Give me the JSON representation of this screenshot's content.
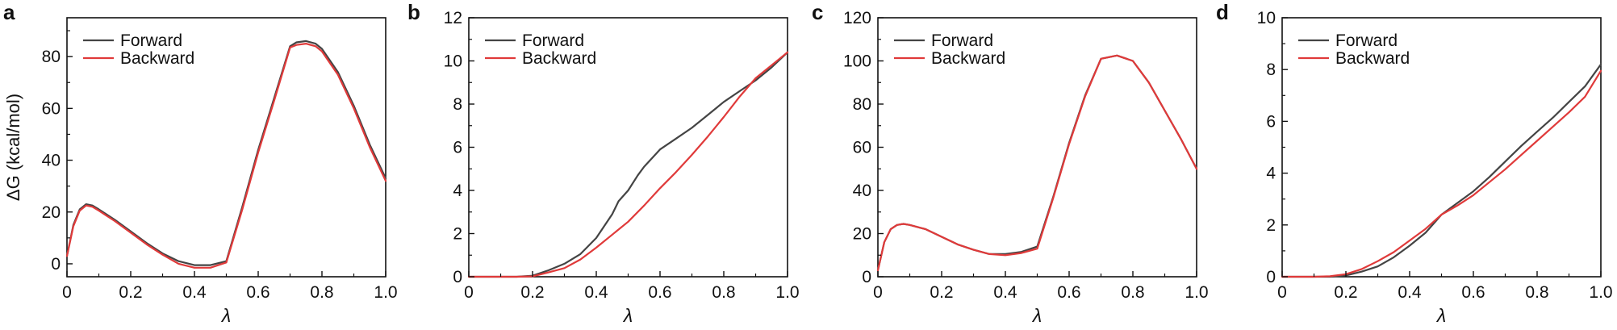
{
  "chart_data": [
    {
      "type": "line",
      "panel_label": "a",
      "xlabel": "λ",
      "ylabel": "ΔG (kcal/mol)",
      "xlim": [
        0,
        1
      ],
      "ylim": [
        -5,
        95
      ],
      "xticks": [
        0,
        0.2,
        0.4,
        0.6,
        0.8,
        1.0
      ],
      "xtick_labels": [
        "0",
        "0.2",
        "0.4",
        "0.6",
        "0.8",
        "1.0"
      ],
      "yticks": [
        0,
        20,
        40,
        60,
        80
      ],
      "ytick_labels": [
        "0",
        "20",
        "40",
        "60",
        "80"
      ],
      "legend": "top-left",
      "grid": false,
      "series": [
        {
          "name": "Forward",
          "color": "#444444",
          "x": [
            0,
            0.02,
            0.04,
            0.06,
            0.08,
            0.1,
            0.15,
            0.2,
            0.25,
            0.3,
            0.35,
            0.4,
            0.45,
            0.5,
            0.55,
            0.6,
            0.65,
            0.7,
            0.72,
            0.75,
            0.78,
            0.8,
            0.85,
            0.9,
            0.95,
            1.0
          ],
          "y": [
            3,
            15,
            21,
            23,
            22.5,
            21,
            17,
            12.5,
            8,
            4,
            1,
            -0.5,
            -0.5,
            1,
            22,
            44,
            64,
            84,
            85.5,
            86,
            85,
            83,
            74,
            61,
            46,
            33
          ]
        },
        {
          "name": "Backward",
          "color": "#e03a3a",
          "x": [
            0,
            0.02,
            0.04,
            0.06,
            0.08,
            0.1,
            0.15,
            0.2,
            0.25,
            0.3,
            0.35,
            0.4,
            0.45,
            0.5,
            0.55,
            0.6,
            0.65,
            0.7,
            0.72,
            0.75,
            0.78,
            0.8,
            0.85,
            0.9,
            0.95,
            1.0
          ],
          "y": [
            3,
            14.5,
            20.5,
            22.5,
            22,
            20.5,
            16.5,
            12,
            7.5,
            3.5,
            0,
            -1.5,
            -1.5,
            0.5,
            21,
            43,
            63,
            83.5,
            84.5,
            85,
            84,
            82,
            73,
            60,
            45,
            32
          ]
        }
      ]
    },
    {
      "type": "line",
      "panel_label": "b",
      "xlabel": "λ",
      "ylabel": "",
      "xlim": [
        0,
        1
      ],
      "ylim": [
        0,
        12
      ],
      "xticks": [
        0,
        0.2,
        0.4,
        0.6,
        0.8,
        1.0
      ],
      "xtick_labels": [
        "0",
        "0.2",
        "0.4",
        "0.6",
        "0.8",
        "1.0"
      ],
      "yticks": [
        0,
        2,
        4,
        6,
        8,
        10,
        12
      ],
      "ytick_labels": [
        "0",
        "2",
        "4",
        "6",
        "8",
        "10",
        "12"
      ],
      "legend": "top-left",
      "grid": false,
      "series": [
        {
          "name": "Forward",
          "color": "#444444",
          "x": [
            0,
            0.1,
            0.15,
            0.2,
            0.25,
            0.3,
            0.35,
            0.4,
            0.45,
            0.47,
            0.5,
            0.53,
            0.55,
            0.6,
            0.65,
            0.7,
            0.75,
            0.8,
            0.85,
            0.9,
            0.95,
            1.0
          ],
          "y": [
            0,
            0,
            0,
            0.05,
            0.3,
            0.6,
            1.05,
            1.8,
            2.9,
            3.5,
            4.0,
            4.7,
            5.1,
            5.9,
            6.4,
            6.9,
            7.5,
            8.1,
            8.6,
            9.1,
            9.7,
            10.4
          ]
        },
        {
          "name": "Backward",
          "color": "#e03a3a",
          "x": [
            0,
            0.1,
            0.15,
            0.2,
            0.25,
            0.3,
            0.35,
            0.4,
            0.45,
            0.5,
            0.55,
            0.6,
            0.65,
            0.7,
            0.75,
            0.8,
            0.85,
            0.9,
            0.95,
            1.0
          ],
          "y": [
            0,
            0,
            0,
            0.02,
            0.2,
            0.4,
            0.8,
            1.35,
            1.95,
            2.55,
            3.3,
            4.1,
            4.85,
            5.65,
            6.5,
            7.4,
            8.35,
            9.2,
            9.8,
            10.4
          ]
        }
      ]
    },
    {
      "type": "line",
      "panel_label": "c",
      "xlabel": "λ",
      "ylabel": "",
      "xlim": [
        0,
        1
      ],
      "ylim": [
        0,
        120
      ],
      "xticks": [
        0,
        0.2,
        0.4,
        0.6,
        0.8,
        1.0
      ],
      "xtick_labels": [
        "0",
        "0.2",
        "0.4",
        "0.6",
        "0.8",
        "1.0"
      ],
      "yticks": [
        0,
        20,
        40,
        60,
        80,
        100,
        120
      ],
      "ytick_labels": [
        "0",
        "20",
        "40",
        "60",
        "80",
        "100",
        "120"
      ],
      "legend": "top-left",
      "grid": false,
      "series": [
        {
          "name": "Forward",
          "color": "#444444",
          "x": [
            0,
            0.02,
            0.04,
            0.06,
            0.08,
            0.1,
            0.15,
            0.2,
            0.25,
            0.3,
            0.35,
            0.4,
            0.45,
            0.5,
            0.55,
            0.6,
            0.65,
            0.7,
            0.75,
            0.8,
            0.85,
            0.9,
            0.95,
            1.0
          ],
          "y": [
            3,
            16,
            22,
            24,
            24.5,
            24,
            22,
            18.5,
            15,
            12.5,
            10.5,
            10.5,
            11.5,
            14,
            37,
            62,
            84,
            101,
            102.5,
            100,
            90,
            77,
            64,
            50
          ]
        },
        {
          "name": "Backward",
          "color": "#e03a3a",
          "x": [
            0,
            0.02,
            0.04,
            0.06,
            0.08,
            0.1,
            0.15,
            0.2,
            0.25,
            0.3,
            0.35,
            0.4,
            0.45,
            0.5,
            0.55,
            0.6,
            0.65,
            0.7,
            0.75,
            0.8,
            0.85,
            0.9,
            0.95,
            1.0
          ],
          "y": [
            3,
            16,
            22,
            24,
            24.5,
            24,
            22,
            18.5,
            15,
            12.5,
            10.5,
            10,
            11,
            13,
            36.5,
            61.5,
            83.5,
            101,
            102.5,
            100,
            90,
            77,
            64,
            50
          ]
        }
      ]
    },
    {
      "type": "line",
      "panel_label": "d",
      "xlabel": "λ",
      "ylabel": "",
      "xlim": [
        0,
        1
      ],
      "ylim": [
        0,
        10
      ],
      "xticks": [
        0,
        0.2,
        0.4,
        0.6,
        0.8,
        1.0
      ],
      "xtick_labels": [
        "0",
        "0.2",
        "0.4",
        "0.6",
        "0.8",
        "1.0"
      ],
      "yticks": [
        0,
        2,
        4,
        6,
        8,
        10
      ],
      "ytick_labels": [
        "0",
        "2",
        "4",
        "6",
        "8",
        "10"
      ],
      "legend": "top-left",
      "grid": false,
      "series": [
        {
          "name": "Forward",
          "color": "#444444",
          "x": [
            0,
            0.1,
            0.15,
            0.2,
            0.25,
            0.3,
            0.35,
            0.4,
            0.45,
            0.5,
            0.55,
            0.6,
            0.65,
            0.7,
            0.75,
            0.8,
            0.85,
            0.9,
            0.95,
            1.0
          ],
          "y": [
            0,
            0,
            0,
            0.05,
            0.2,
            0.4,
            0.75,
            1.2,
            1.7,
            2.4,
            2.85,
            3.3,
            3.85,
            4.45,
            5.05,
            5.6,
            6.15,
            6.75,
            7.35,
            8.2
          ]
        },
        {
          "name": "Backward",
          "color": "#e03a3a",
          "x": [
            0,
            0.1,
            0.15,
            0.2,
            0.25,
            0.3,
            0.35,
            0.4,
            0.45,
            0.5,
            0.55,
            0.6,
            0.65,
            0.7,
            0.75,
            0.8,
            0.85,
            0.9,
            0.95,
            1.0
          ],
          "y": [
            0,
            0,
            0.02,
            0.1,
            0.3,
            0.6,
            0.95,
            1.4,
            1.85,
            2.4,
            2.75,
            3.15,
            3.65,
            4.15,
            4.7,
            5.25,
            5.8,
            6.35,
            6.95,
            7.95
          ]
        }
      ]
    }
  ]
}
